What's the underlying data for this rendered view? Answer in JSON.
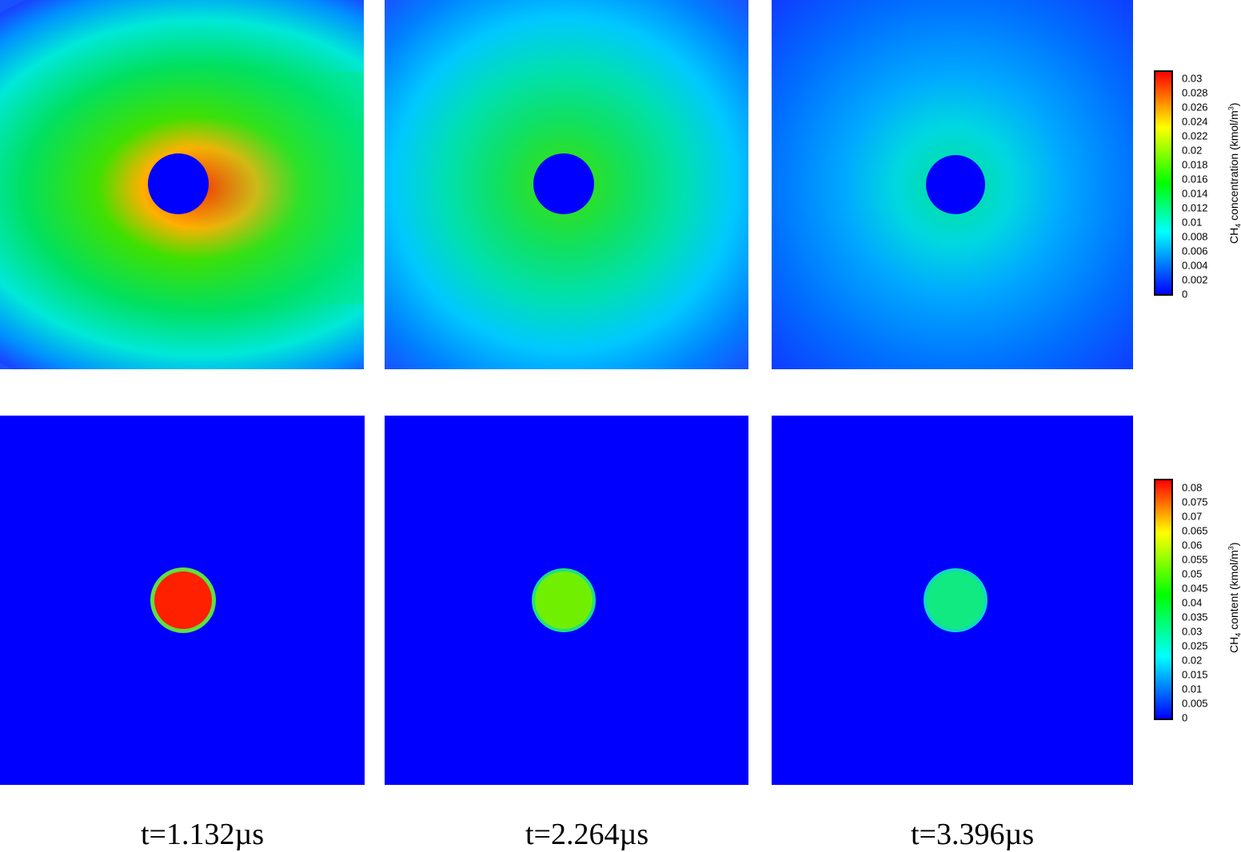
{
  "chart_data": [
    {
      "type": "heatmap",
      "variable": "CH4 concentration",
      "colorbar_label": {
        "prefix": "CH",
        "sub": "4",
        "middle": " concentration (kmol/m",
        "sup": "3",
        "suffix": ")"
      },
      "colorbar_ticks": [
        "0.03",
        "0.028",
        "0.026",
        "0.024",
        "0.022",
        "0.02",
        "0.018",
        "0.016",
        "0.014",
        "0.012",
        "0.01",
        "0.008",
        "0.006",
        "0.004",
        "0.002",
        "0"
      ],
      "range": [
        0,
        0.03
      ],
      "panels": [
        {
          "time": "t=1.132µs",
          "particle_value": 0.0,
          "rim_max_value": 0.03,
          "far_field_value": 0.016
        },
        {
          "time": "t=2.264µs",
          "particle_value": 0.0,
          "rim_max_value": 0.017,
          "far_field_value": 0.01
        },
        {
          "time": "t=3.396µs",
          "particle_value": 0.0,
          "rim_max_value": 0.012,
          "far_field_value": 0.004
        }
      ]
    },
    {
      "type": "heatmap",
      "variable": "CH4 content",
      "colorbar_label": {
        "prefix": "CH",
        "sub": "4",
        "middle": " content (kmol/m",
        "sup": "3",
        "suffix": ")"
      },
      "colorbar_ticks": [
        "0.08",
        "0.075",
        "0.07",
        "0.065",
        "0.06",
        "0.055",
        "0.05",
        "0.045",
        "0.04",
        "0.035",
        "0.03",
        "0.025",
        "0.02",
        "0.015",
        "0.01",
        "0.005",
        "0"
      ],
      "range": [
        0,
        0.08
      ],
      "panels": [
        {
          "time": "t=1.132µs",
          "particle_value": 0.075,
          "background_value": 0.0
        },
        {
          "time": "t=2.264µs",
          "particle_value": 0.052,
          "background_value": 0.0
        },
        {
          "time": "t=3.396µs",
          "particle_value": 0.035,
          "background_value": 0.0
        }
      ]
    }
  ],
  "time_labels": [
    "t=1.132µs",
    "t=2.264µs",
    "t=3.396µs"
  ],
  "colors": {
    "colormap": [
      "#0000ff",
      "#00ffff",
      "#00ff00",
      "#ffff00",
      "#ff0000"
    ],
    "background": "#ffffff"
  }
}
